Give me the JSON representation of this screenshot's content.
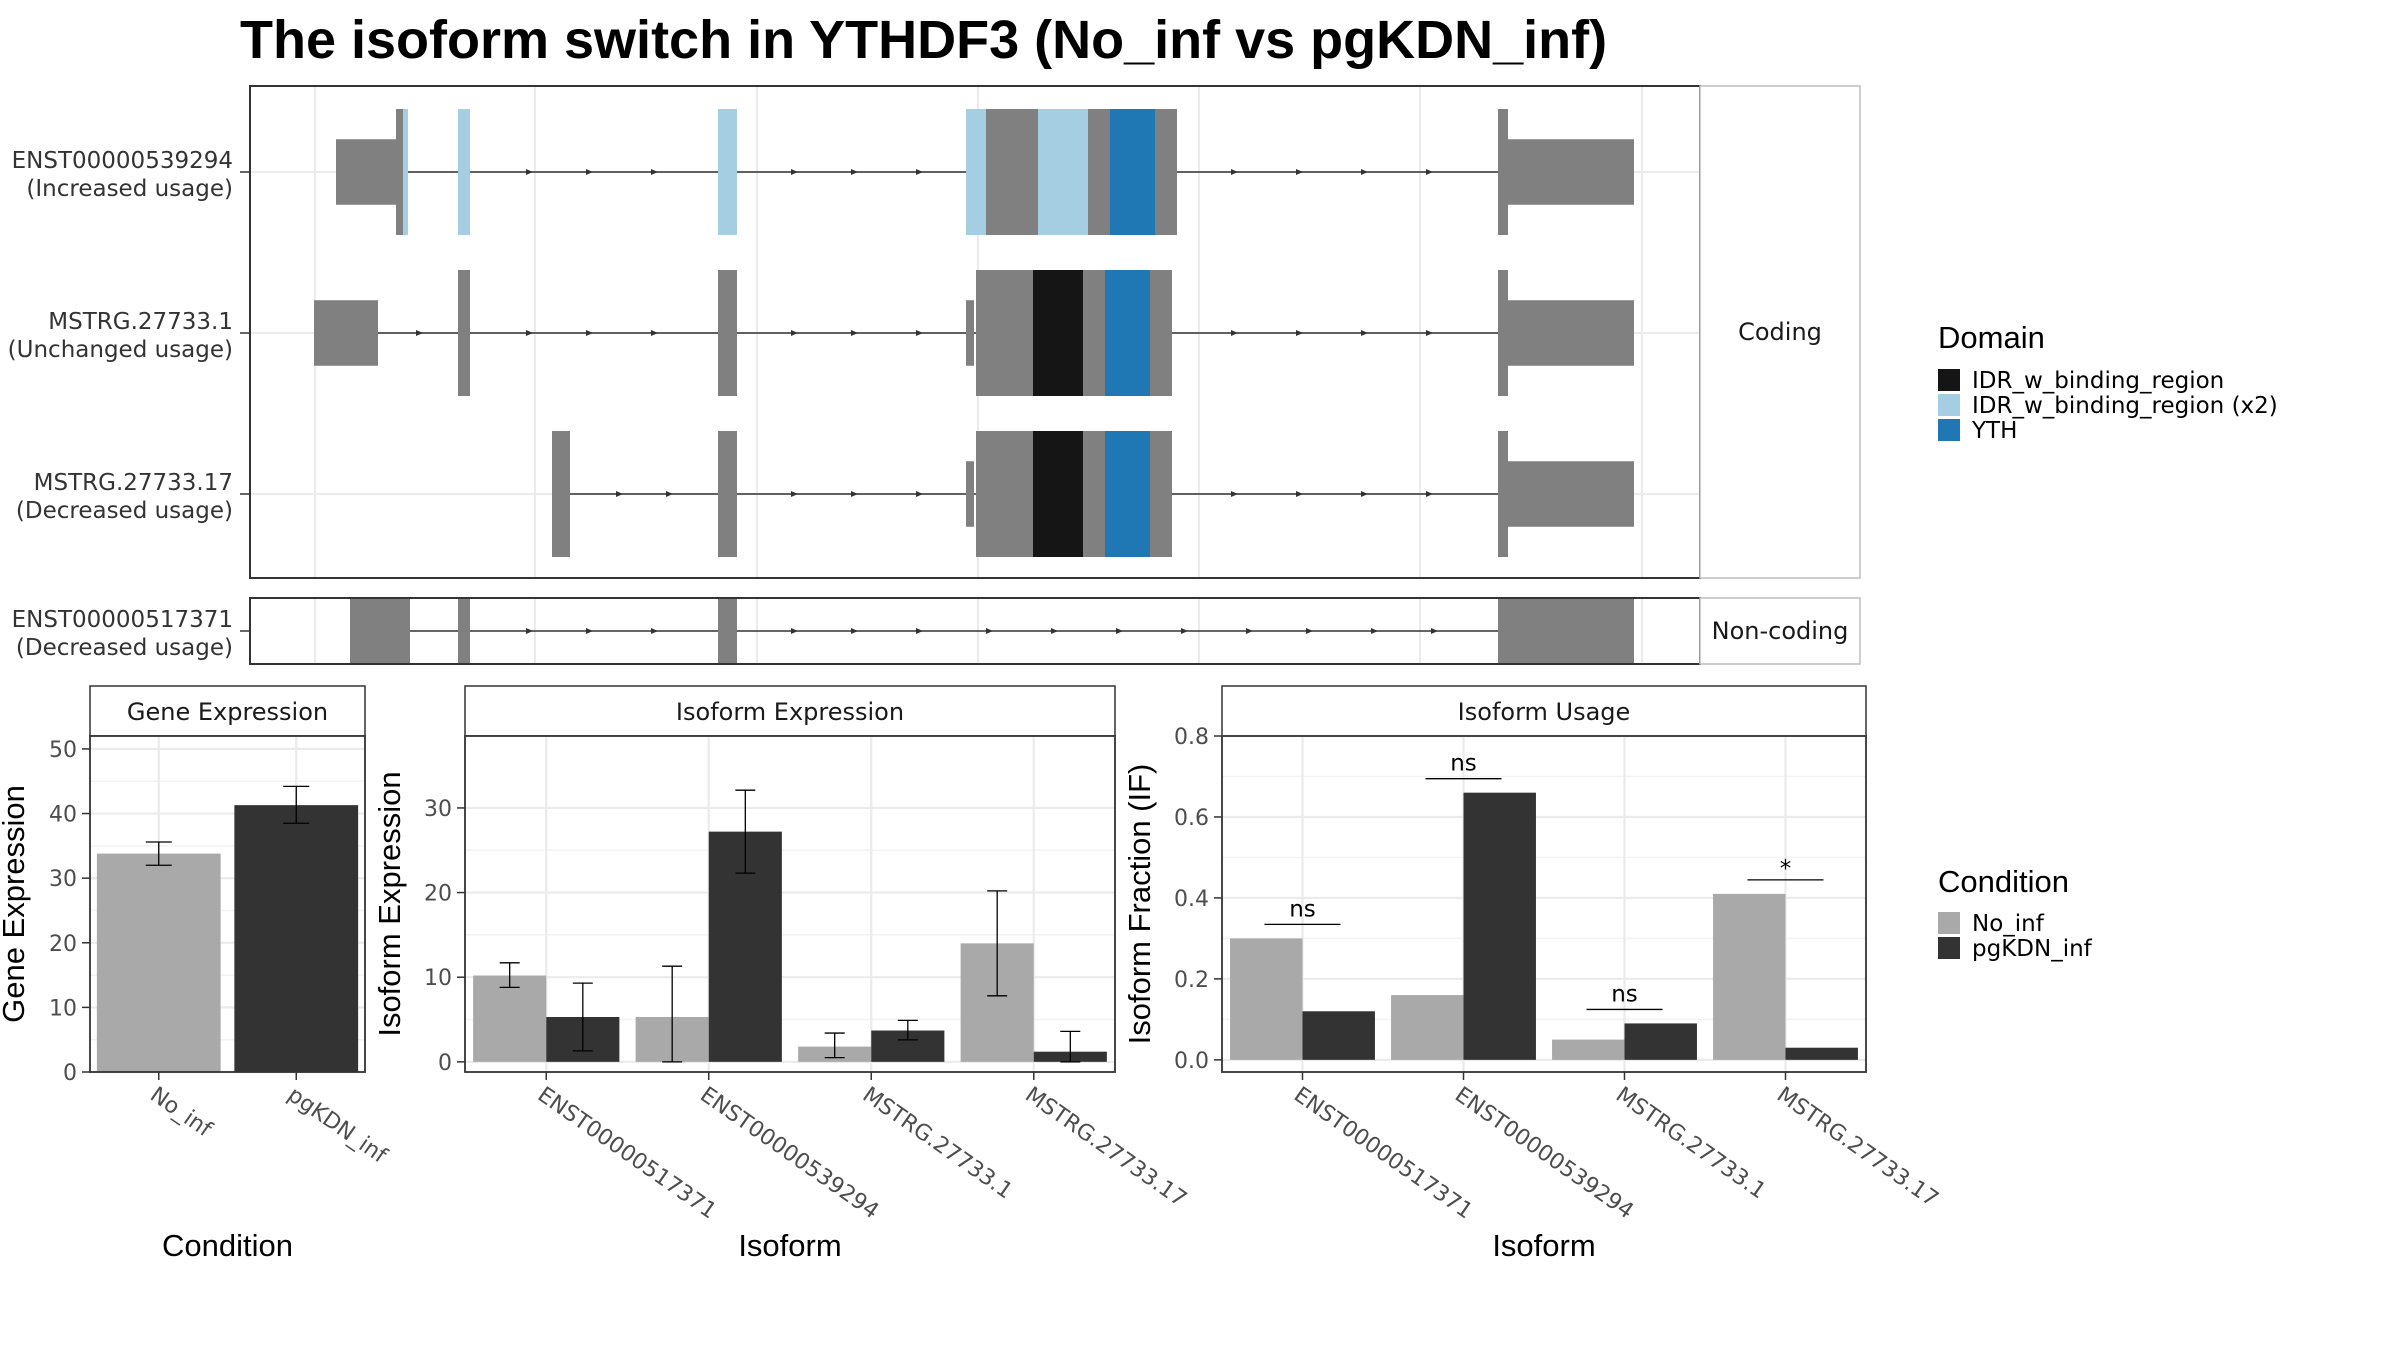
{
  "title": "The isoform switch in YTHDF3 (No_inf vs pgKDN_inf)",
  "colors": {
    "exon": "#808080",
    "IDR_w_binding_region": "#151515",
    "IDR_w_binding_region_x2": "#a6cee3",
    "YTH": "#1f78b4",
    "No_inf": "#a9a9a9",
    "pgKDN_inf": "#333333",
    "grid": "#ebebeb"
  },
  "transcripts": {
    "coding_label": "Coding",
    "noncoding_label": "Non-coding",
    "coding": [
      {
        "id": "ENST00000539294",
        "usage": "(Increased usage)"
      },
      {
        "id": "MSTRG.27733.1",
        "usage": "(Unchanged usage)"
      },
      {
        "id": "MSTRG.27733.17",
        "usage": "(Decreased usage)"
      }
    ],
    "noncoding": [
      {
        "id": "ENST00000517371",
        "usage": "(Decreased usage)"
      }
    ]
  },
  "domain_legend": {
    "title": "Domain",
    "items": [
      {
        "label": "IDR_w_binding_region",
        "color_key": "IDR_w_binding_region"
      },
      {
        "label": "IDR_w_binding_region (x2)",
        "color_key": "IDR_w_binding_region_x2"
      },
      {
        "label": "YTH",
        "color_key": "YTH"
      }
    ]
  },
  "condition_legend": {
    "title": "Condition",
    "items": [
      {
        "label": "No_inf",
        "color_key": "No_inf"
      },
      {
        "label": "pgKDN_inf",
        "color_key": "pgKDN_inf"
      }
    ]
  },
  "chart_data": [
    {
      "type": "bar",
      "title": "Gene Expression",
      "xlabel": "Condition",
      "ylabel": "Gene Expression",
      "categories": [
        "No_inf",
        "pgKDN_inf"
      ],
      "values": [
        33.8,
        41.3
      ],
      "error_low": [
        32.0,
        38.5
      ],
      "error_high": [
        35.6,
        44.2
      ],
      "ylim": [
        0,
        52
      ],
      "yticks": [
        0,
        10,
        20,
        30,
        40,
        50
      ],
      "grid": true
    },
    {
      "type": "bar",
      "title": "Isoform Expression",
      "xlabel": "Isoform",
      "ylabel": "Isoform Expression",
      "categories": [
        "ENST00000517371",
        "ENST00000539294",
        "MSTRG.27733.1",
        "MSTRG.27733.17"
      ],
      "series": [
        {
          "name": "No_inf",
          "values": [
            10.2,
            5.3,
            1.8,
            14.0
          ],
          "error_low": [
            8.8,
            0.0,
            0.5,
            7.8
          ],
          "error_high": [
            11.7,
            11.3,
            3.4,
            20.2
          ]
        },
        {
          "name": "pgKDN_inf",
          "values": [
            5.3,
            27.2,
            3.7,
            1.2
          ],
          "error_low": [
            1.3,
            22.3,
            2.6,
            0.0
          ],
          "error_high": [
            9.3,
            32.1,
            4.9,
            3.6
          ]
        }
      ],
      "ylim": [
        -1.2,
        38.5
      ],
      "yticks": [
        0,
        10,
        20,
        30
      ],
      "grid": true
    },
    {
      "type": "bar",
      "title": "Isoform Usage",
      "xlabel": "Isoform",
      "ylabel": "Isoform Fraction (IF)",
      "categories": [
        "ENST00000517371",
        "ENST00000539294",
        "MSTRG.27733.1",
        "MSTRG.27733.17"
      ],
      "series": [
        {
          "name": "No_inf",
          "values": [
            0.3,
            0.16,
            0.05,
            0.41
          ]
        },
        {
          "name": "pgKDN_inf",
          "values": [
            0.12,
            0.66,
            0.09,
            0.03
          ]
        }
      ],
      "significance": [
        "ns",
        "ns",
        "ns",
        "*"
      ],
      "ylim": [
        -0.03,
        0.8
      ],
      "yticks": [
        0.0,
        0.2,
        0.4,
        0.6,
        0.8
      ],
      "grid": true
    }
  ]
}
